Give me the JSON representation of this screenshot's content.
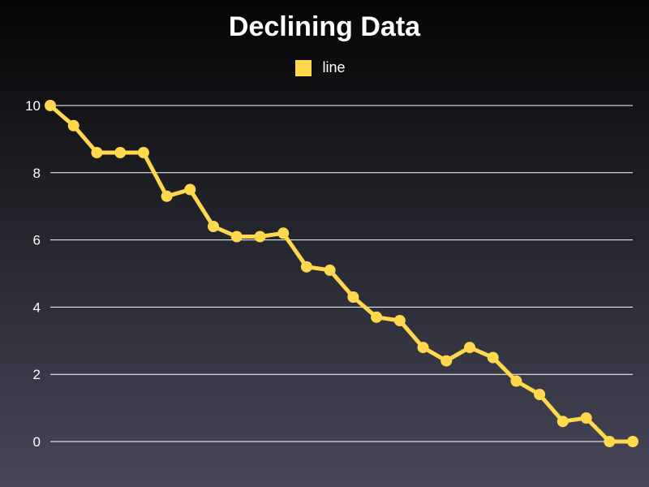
{
  "chart_data": {
    "type": "line",
    "title": "Declining Data",
    "xlabel": "",
    "ylabel": "",
    "ylim": [
      0,
      10
    ],
    "yticks": [
      0,
      2,
      4,
      6,
      8,
      10
    ],
    "grid": true,
    "legend_placement": "top-center",
    "colors": {
      "line": "#ffd84d",
      "grid": "#ffffff"
    },
    "x": [
      0,
      1,
      2,
      3,
      4,
      5,
      6,
      7,
      8,
      9,
      10,
      11,
      12,
      13,
      14,
      15,
      16,
      17,
      18,
      19,
      20,
      21,
      22,
      23,
      24,
      25
    ],
    "series": [
      {
        "name": "line",
        "values": [
          10,
          9.4,
          8.6,
          8.6,
          8.6,
          7.3,
          7.5,
          6.4,
          6.1,
          6.1,
          6.2,
          5.2,
          5.1,
          4.3,
          3.7,
          3.6,
          2.8,
          2.4,
          2.8,
          2.5,
          1.8,
          1.4,
          0.6,
          0.7,
          0.0,
          0.0
        ]
      }
    ]
  }
}
